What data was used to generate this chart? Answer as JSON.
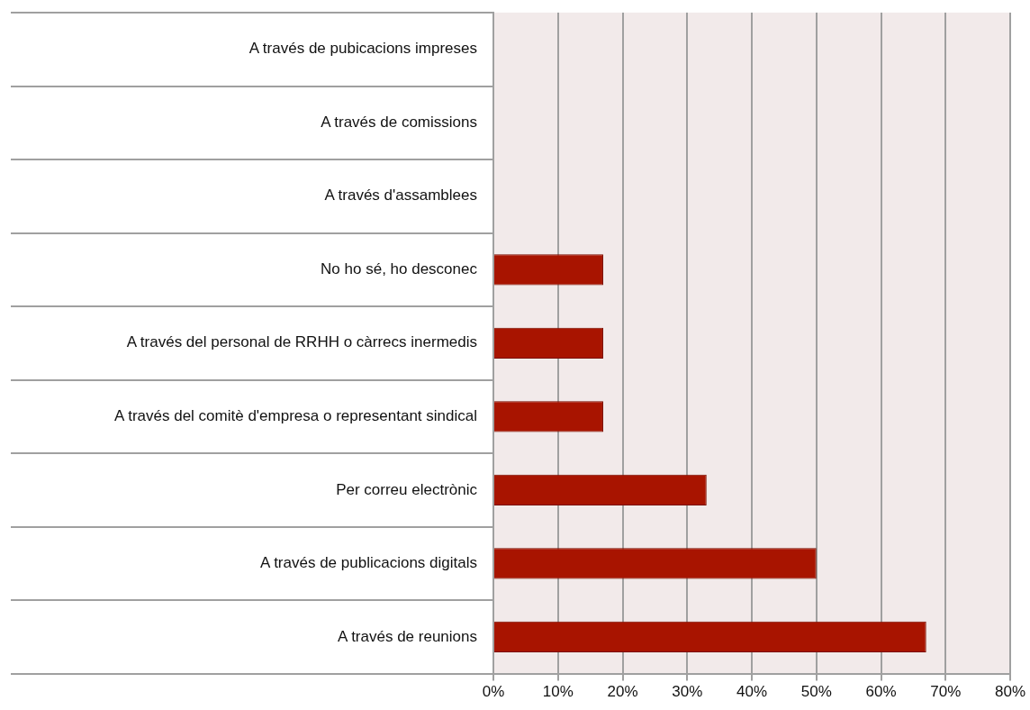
{
  "chart_data": {
    "type": "bar",
    "orientation": "horizontal",
    "categories": [
      "A través de pubicacions impreses",
      "A través de comissions",
      "A través d'assamblees",
      "No ho sé, ho desconec",
      "A través del personal de RRHH o càrrecs inermedis",
      "A través del comitè d'empresa o representant sindical",
      "Per correu electrònic",
      "A través de publicacions digitals",
      "A través de reunions"
    ],
    "values": [
      0,
      0,
      0,
      17,
      17,
      17,
      33,
      50,
      67
    ],
    "color": "#a81400",
    "xlim": [
      0,
      80
    ],
    "xticks": [
      {
        "value": 0,
        "label": "0%"
      },
      {
        "value": 10,
        "label": "10%"
      },
      {
        "value": 20,
        "label": "20%"
      },
      {
        "value": 30,
        "label": "30%"
      },
      {
        "value": 40,
        "label": "40%"
      },
      {
        "value": 50,
        "label": "50%"
      },
      {
        "value": 60,
        "label": "60%"
      },
      {
        "value": 70,
        "label": "70%"
      },
      {
        "value": 80,
        "label": "80%"
      }
    ],
    "grid": true,
    "legend": false
  }
}
